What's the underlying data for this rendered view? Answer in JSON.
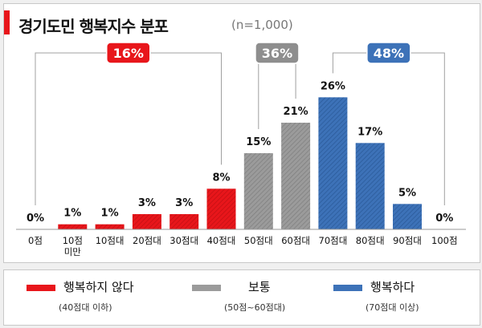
{
  "title": "경기도민 행복지수 분포",
  "subtitle": "(n=1,000)",
  "colors": {
    "unhappy": "#e8161b",
    "neutral": "#9b9b9b",
    "happy": "#3d72b8"
  },
  "chart_data": {
    "type": "bar",
    "categories": [
      "0점",
      "10점 미만",
      "10점대",
      "20점대",
      "30점대",
      "40점대",
      "50점대",
      "60점대",
      "70점대",
      "80점대",
      "90점대",
      "100점"
    ],
    "values": [
      0,
      1,
      1,
      3,
      3,
      8,
      15,
      21,
      26,
      17,
      5,
      0
    ],
    "value_labels": [
      "0%",
      "1%",
      "1%",
      "3%",
      "3%",
      "8%",
      "15%",
      "21%",
      "26%",
      "17%",
      "5%",
      "0%"
    ],
    "unit": "%",
    "groups": [
      {
        "name": "행복하지 않다",
        "range": "(40점대 이하)",
        "share": "16%",
        "from": 0,
        "to": 5,
        "color_key": "unhappy"
      },
      {
        "name": "보통",
        "range": "(50점~60점대)",
        "share": "36%",
        "from": 6,
        "to": 7,
        "color_key": "neutral"
      },
      {
        "name": "행복하다",
        "range": "(70점대 이상)",
        "share": "48%",
        "from": 8,
        "to": 11,
        "color_key": "happy"
      }
    ],
    "ylim": [
      0,
      30
    ],
    "grid": false,
    "legend_position": "bottom"
  }
}
